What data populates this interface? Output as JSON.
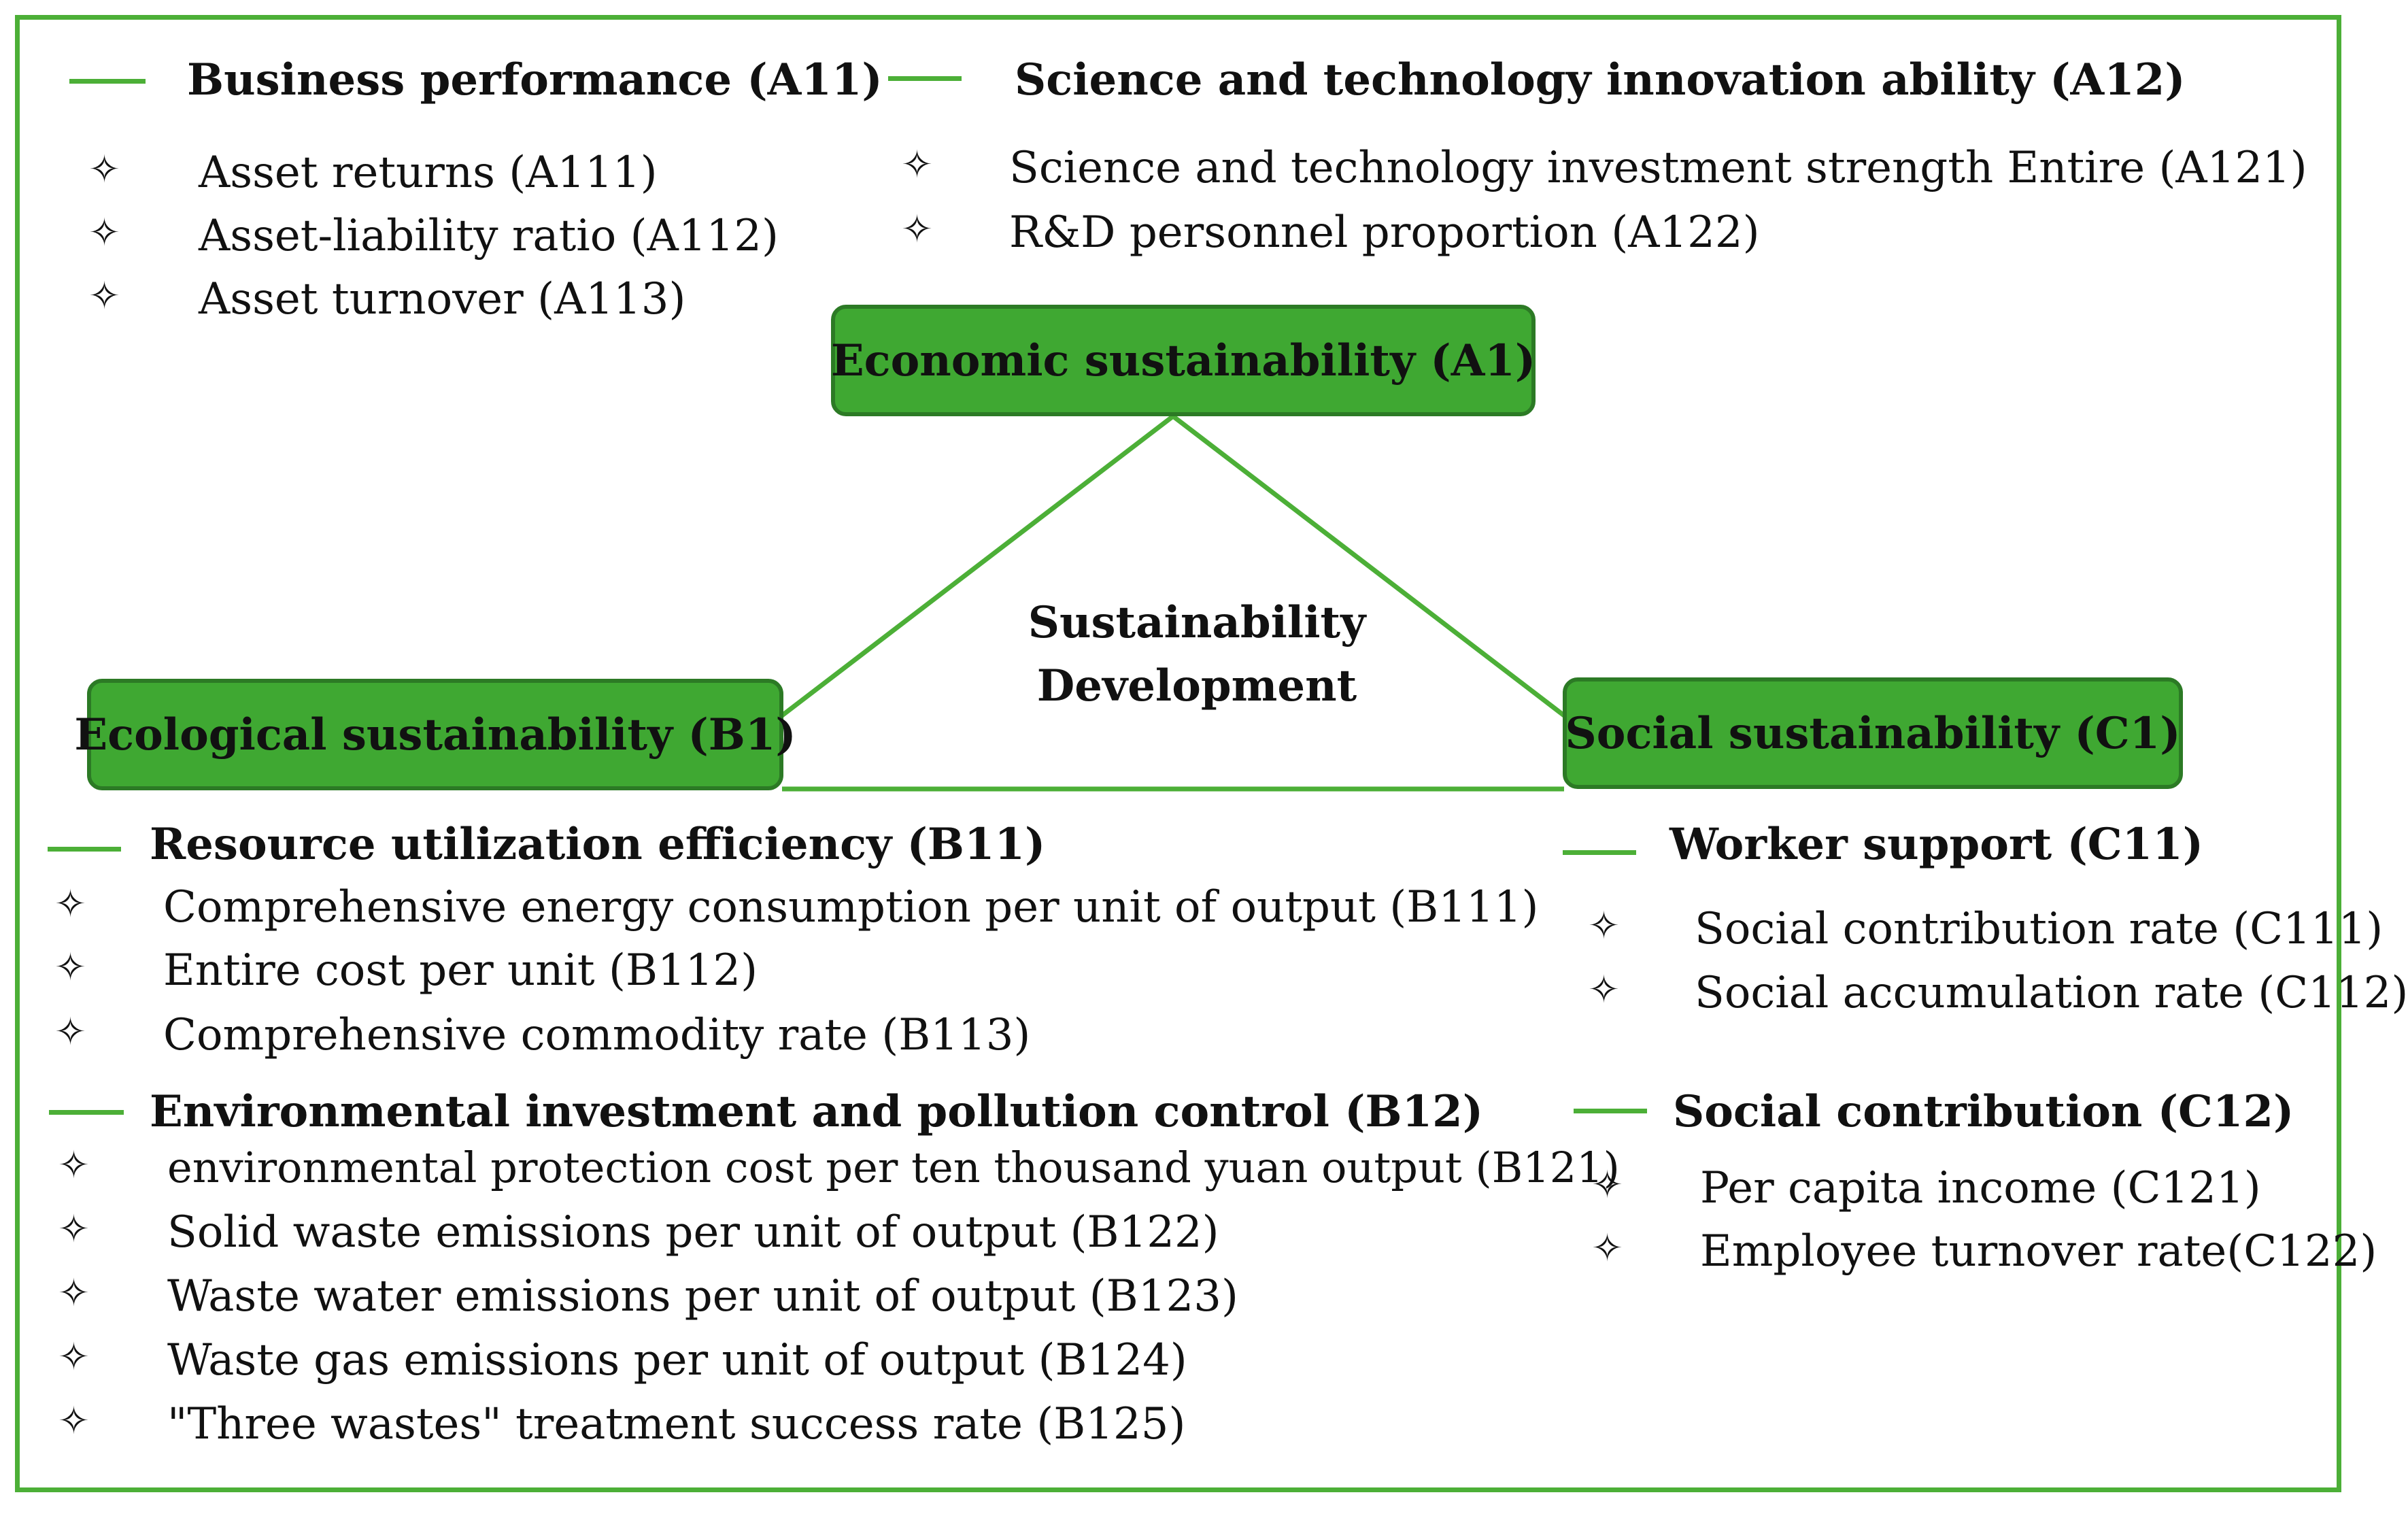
{
  "colors": {
    "accent": "#4caf37",
    "node_fill": "#3fa832",
    "node_border": "#2c7a25"
  },
  "bullet_icon": "four-point-star-icon",
  "center": {
    "line1": "Sustainability",
    "line2": "Development"
  },
  "nodes": {
    "economic": "Economic sustainability (A1)",
    "ecological": "Ecological sustainability (B1)",
    "social": "Social sustainability (C1)"
  },
  "groups": {
    "a11": {
      "title": "Business performance (A11)",
      "items": [
        "Asset returns (A111)",
        "Asset-liability ratio (A112)",
        "Asset turnover (A113)"
      ]
    },
    "a12": {
      "title": "Science and technology innovation ability (A12)",
      "items": [
        "Science and technology investment strength Entire (A121)",
        "R&D personnel proportion (A122)"
      ]
    },
    "b11": {
      "title": "Resource utilization efficiency (B11)",
      "items": [
        "Comprehensive energy consumption per unit of output (B111)",
        "Entire cost per unit (B112)",
        "Comprehensive commodity rate (B113)"
      ]
    },
    "b12": {
      "title": "Environmental investment and pollution control (B12)",
      "items": [
        "environmental protection cost per ten thousand yuan output (B121)",
        "Solid waste emissions per unit of output (B122)",
        "Waste water emissions per unit of output (B123)",
        "Waste gas emissions per unit of output (B124)",
        "\"Three wastes\" treatment success rate (B125)"
      ]
    },
    "c11": {
      "title": "Worker support (C11)",
      "items": [
        "Social contribution rate (C111)",
        "Social accumulation rate (C112)"
      ]
    },
    "c12": {
      "title": "Social contribution (C12)",
      "items": [
        "Per capita income (C121)",
        "Employee turnover rate(C122)"
      ]
    }
  }
}
